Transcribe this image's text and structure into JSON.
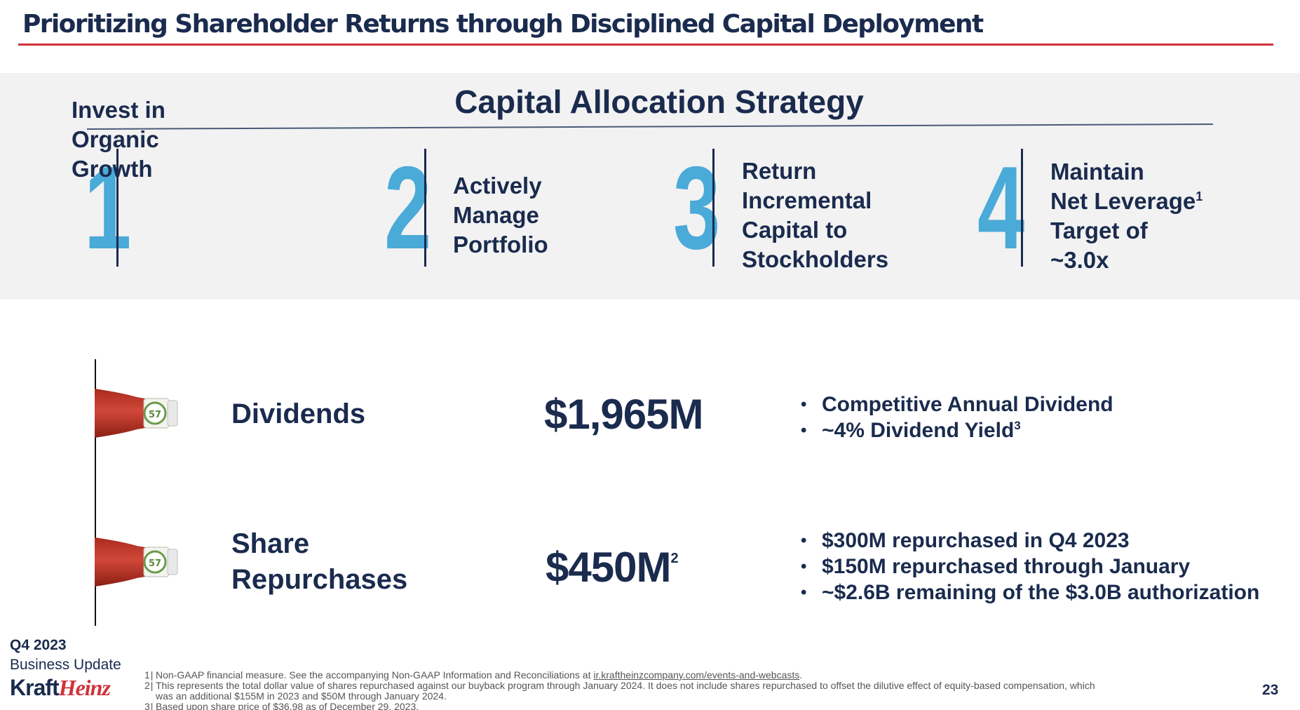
{
  "header": {
    "title": "Prioritizing Shareholder Returns through Disciplined Capital Deployment"
  },
  "strategy": {
    "heading": "Capital Allocation Strategy",
    "accent_color": "#4aaad8",
    "pillars": [
      {
        "number": "1",
        "lines": [
          "Invest in",
          "Organic",
          "Growth"
        ]
      },
      {
        "number": "2",
        "lines": [
          "Actively",
          "Manage",
          "Portfolio"
        ]
      },
      {
        "number": "3",
        "lines": [
          "Return",
          "Incremental",
          "Capital to",
          "Stockholders"
        ]
      },
      {
        "number": "4",
        "lines": [
          "Maintain",
          "Net Leverage",
          "Target of",
          "~3.0x"
        ],
        "footnote": "1"
      }
    ]
  },
  "returns": {
    "dividends": {
      "label": "Dividends",
      "amount": "$1,965M",
      "bullets": [
        {
          "text": "Competitive Annual Dividend"
        },
        {
          "text": "~4% Dividend Yield",
          "sup": "3"
        }
      ]
    },
    "repurchases": {
      "label_lines": [
        "Share",
        "Repurchases"
      ],
      "amount": "$450M",
      "amount_sup": "2",
      "bullets": [
        {
          "text": "$300M repurchased in Q4 2023"
        },
        {
          "text": "$150M repurchased through January"
        },
        {
          "text": "~$2.6B remaining of the $3.0B authorization"
        }
      ]
    },
    "bottle_label": "57"
  },
  "footer": {
    "period": "Q4 2023",
    "subtitle": "Business Update",
    "logo_part1": "Kraft",
    "logo_part2": "Heinz",
    "page_number": "23",
    "brand_red": "#d0323b",
    "navy": "#1a2b4e",
    "footnotes": [
      {
        "num": "1",
        "text": "Non-GAAP financial measure. See the accompanying Non-GAAP Information and Reconciliations at ",
        "link": "ir.kraftheinzcompany.com/events-and-webcasts",
        "after": "."
      },
      {
        "num": "2",
        "text": "This represents the total dollar value of shares repurchased against our buyback program through January 2024. It does not include shares repurchased to offset the dilutive effect of equity-based compensation, which",
        "text2": "was an additional $155M in 2023 and $50M through January 2024."
      },
      {
        "num": "3",
        "text": "Based upon share price of $36.98 as of December 29, 2023."
      }
    ]
  }
}
